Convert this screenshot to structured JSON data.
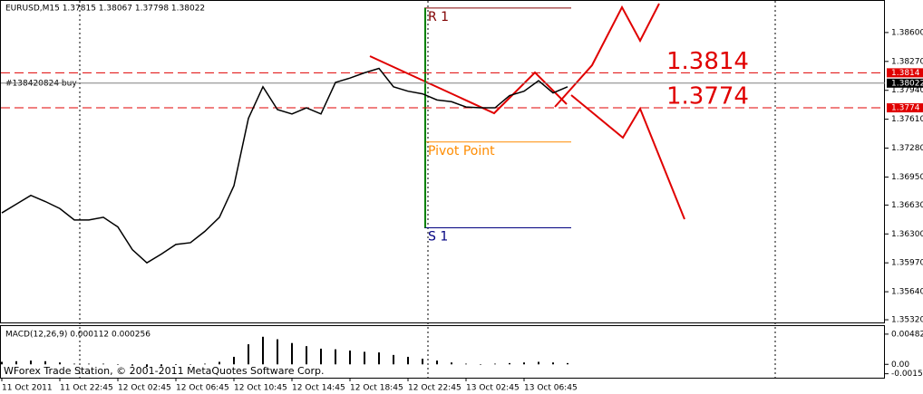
{
  "chart_data": [
    {
      "type": "line",
      "title": "EURUSD,M15  1.37815 1.38067 1.37798 1.38022",
      "annotation": "#138420824 buy",
      "categories": [
        "11 Oct 2011",
        null,
        null,
        null,
        "11 Oct 22:45",
        null,
        null,
        null,
        "12 Oct 02:45",
        null,
        null,
        null,
        "12 Oct 06:45",
        null,
        null,
        null,
        "12 Oct 10:45",
        null,
        null,
        null,
        "12 Oct 14:45",
        null,
        null,
        null,
        "12 Oct 18:45",
        null,
        null,
        null,
        "12 Oct 22:45",
        null,
        null,
        null,
        "13 Oct 02:45",
        null,
        null,
        null,
        "13 Oct 06:45",
        null,
        null,
        null
      ],
      "series": [
        {
          "name": "EURUSD,M15",
          "color": "#000000",
          "values": [
            1.3654,
            1.3664,
            1.3674,
            1.3667,
            1.3659,
            1.3646,
            1.3646,
            1.3649,
            1.3638,
            1.3612,
            1.3597,
            1.3607,
            1.3618,
            1.362,
            1.3633,
            1.3649,
            1.3685,
            1.3762,
            1.3798,
            1.3772,
            1.3767,
            1.3774,
            1.3767,
            1.3803,
            1.3808,
            1.3814,
            1.3819,
            1.3798,
            1.3793,
            1.379,
            1.3783,
            1.3781,
            1.3775,
            1.3774,
            1.3774,
            1.3788,
            1.3793,
            1.3805,
            1.3791,
            1.3798
          ]
        }
      ],
      "ylim": [
        1.35279,
        1.38961
      ],
      "yticks": [
        {
          "value": 1.386,
          "label": "1.38600"
        },
        {
          "value": 1.3827,
          "label": "1.38270"
        },
        {
          "value": 1.3794,
          "label": "1.37940"
        },
        {
          "value": 1.3761,
          "label": "1.37610"
        },
        {
          "value": 1.3728,
          "label": "1.37280"
        },
        {
          "value": 1.3695,
          "label": "1.36950"
        },
        {
          "value": 1.3663,
          "label": "1.36630"
        },
        {
          "value": 1.363,
          "label": "1.36300"
        },
        {
          "value": 1.3597,
          "label": "1.35970"
        },
        {
          "value": 1.3564,
          "label": "1.35640"
        },
        {
          "value": 1.3532,
          "label": "1.35320"
        }
      ],
      "levels": [
        {
          "name": "R 1",
          "value": 1.3888,
          "color": "#800000"
        },
        {
          "name": "Pivot Point",
          "value": 1.3735,
          "color": "#ff8c00"
        },
        {
          "name": "S 1",
          "value": 1.3637,
          "color": "#000080"
        }
      ],
      "hlines": [
        {
          "value": 1.3814,
          "label": "1.3814",
          "color": "#e00000"
        },
        {
          "value": 1.3774,
          "label": "1.3774",
          "color": "#e00000"
        }
      ],
      "current_price": 1.38022
    },
    {
      "type": "bar",
      "title": "MACD(12,26,9) 0.000112 0.000256",
      "footer": "WForex Trade Station, © 2001-2011 MetaQuotes Software Corp.",
      "color": "#000000",
      "values": [
        0.0004,
        0.0005,
        0.0006,
        0.0005,
        0.0003,
        0.0001,
        0.0001,
        0.0001,
        0,
        -0.0002,
        -0.0004,
        -0.0003,
        -0.0001,
        0,
        0.0001,
        0.0004,
        0.0012,
        0.0032,
        0.0044,
        0.004,
        0.0034,
        0.0029,
        0.0025,
        0.0024,
        0.0022,
        0.002,
        0.0019,
        0.0015,
        0.0012,
        0.0009,
        0.0006,
        0.0003,
        0.0001,
        0,
        0.0001,
        0.0002,
        0.0003,
        0.0004,
        0.0003,
        0.0002
      ],
      "ylim": [
        -0.00213,
        0.006105
      ],
      "yticks": [
        {
          "value": 0.00482,
          "label": "0.00482"
        },
        {
          "value": 0,
          "label": "0.00"
        },
        -0.0015
      ]
    }
  ]
}
